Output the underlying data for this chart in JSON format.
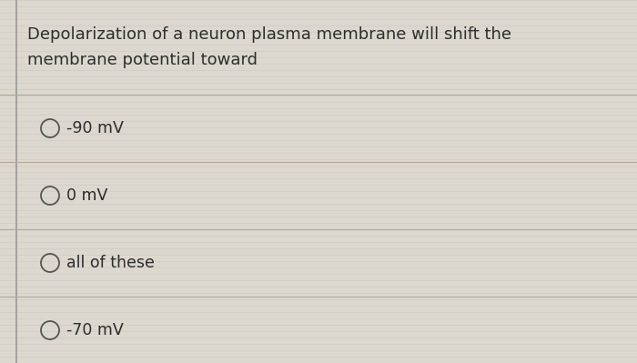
{
  "question_line1": "Depolarization of a neuron plasma membrane will shift the",
  "question_line2": "membrane potential toward",
  "options": [
    "-90 mV",
    "0 mV",
    "all of these",
    "-70 mV"
  ],
  "bg_color": "#ddd8cf",
  "stripe_color": "#ccc7be",
  "text_color": "#2d2d2d",
  "circle_color": "#555555",
  "line_color": "#b0a898",
  "left_bar_color": "#999999",
  "question_fontsize": 13.0,
  "option_fontsize": 12.5,
  "fig_width": 7.0,
  "fig_height": 3.99,
  "dpi": 100
}
